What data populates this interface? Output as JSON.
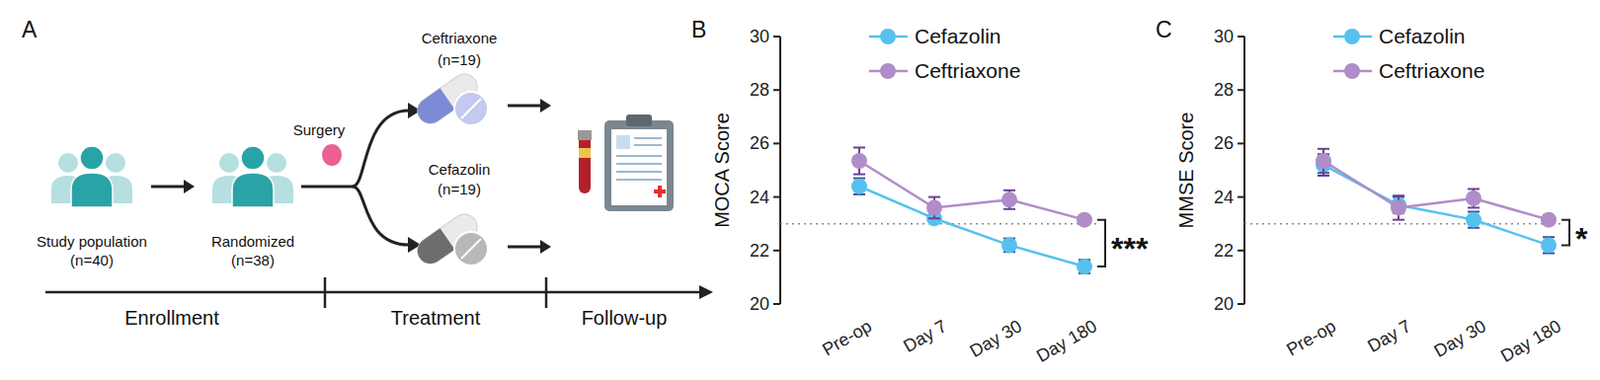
{
  "diagram": {
    "panel_label": "A",
    "nodes": [
      {
        "label": "Study population",
        "count": "(n=40)"
      },
      {
        "label": "Randomized",
        "count": "(n=38)"
      }
    ],
    "event": "Surgery",
    "arms": [
      {
        "label": "Ceftriaxone",
        "count": "(n=19)"
      },
      {
        "label": "Cefazolin",
        "count": "(n=19)"
      }
    ],
    "timeline": [
      "Enrollment",
      "Treatment",
      "Follow-up"
    ]
  },
  "chart_data": [
    {
      "type": "line",
      "annotations": [
        "B",
        "***"
      ],
      "y_label": "MOCA Score",
      "categories": [
        "Pre-op",
        "Day 7",
        "Day 30",
        "Day 180"
      ],
      "series": [
        {
          "name": "Cefazolin",
          "color": "#56c1ee",
          "marker": "circle",
          "line_style": "solid",
          "values": [
            24.4,
            23.2,
            22.2,
            21.4
          ],
          "errors": [
            0.3,
            0.15,
            0.25,
            0.25
          ]
        },
        {
          "name": "Ceftriaxone",
          "color": "#b08cc8",
          "marker": "circle",
          "line_style": "solid",
          "values": [
            25.35,
            23.6,
            23.9,
            23.15
          ],
          "errors": [
            0.5,
            0.4,
            0.35,
            0.15
          ]
        }
      ],
      "ylim": [
        20,
        30
      ],
      "yticks": [
        20,
        22,
        24,
        26,
        28,
        30
      ],
      "reference_lines": [
        23
      ],
      "legend": "upper left"
    },
    {
      "type": "line",
      "annotations": [
        "C",
        "*"
      ],
      "y_label": "MMSE Score",
      "categories": [
        "Pre-op",
        "Day 7",
        "Day 30",
        "Day 180"
      ],
      "series": [
        {
          "name": "Cefazolin",
          "color": "#56c1ee",
          "marker": "circle",
          "line_style": "solid",
          "values": [
            25.2,
            23.7,
            23.15,
            22.2
          ],
          "errors": [
            0.4,
            0.3,
            0.3,
            0.3
          ]
        },
        {
          "name": "Ceftriaxone",
          "color": "#b08cc8",
          "marker": "circle",
          "line_style": "solid",
          "values": [
            25.35,
            23.6,
            23.95,
            23.15
          ],
          "errors": [
            0.45,
            0.45,
            0.35,
            0.15
          ]
        }
      ],
      "ylim": [
        20,
        30
      ],
      "yticks": [
        20,
        22,
        24,
        26,
        28,
        30
      ],
      "reference_lines": [
        23
      ],
      "legend": "upper left"
    }
  ]
}
